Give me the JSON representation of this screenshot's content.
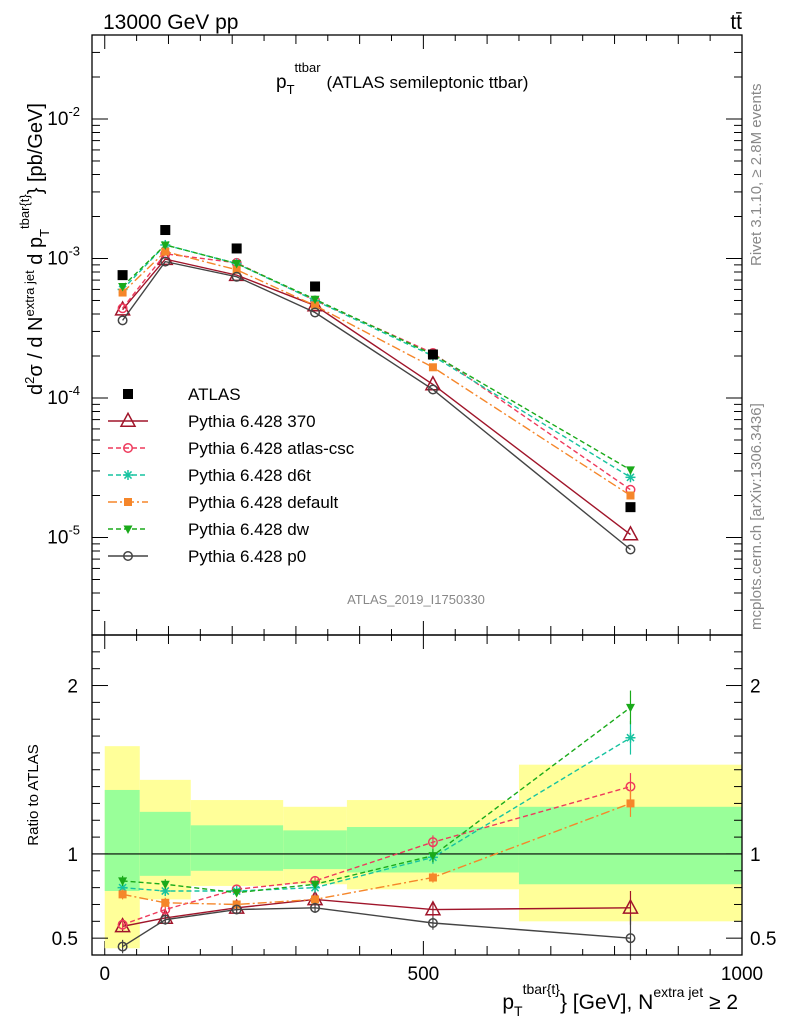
{
  "header": {
    "left": "13000 GeV pp",
    "right": "tt̄"
  },
  "side_labels": {
    "rivet": "Rivet 3.1.10, ≥ 2.8M events",
    "mcplots": "mcplots.cern.ch [arXiv:1306.3436]"
  },
  "chart_data": {
    "type": "line",
    "title_main": "p",
    "title_sub": "T",
    "title_sup": "ttbar",
    "title_rest": "(ATLAS semileptonic ttbar)",
    "watermark": "ATLAS_2019_I1750330",
    "ylabel_main": "d²σ / d N^{extra jet} d p_T^{tbar{t}} [pb/GeV]",
    "ylabel_ratio": "Ratio to ATLAS",
    "xlabel_parts": {
      "p": "p",
      "sub": "T",
      "sup": "tbar{t}",
      "mid": "} [GeV], N",
      "sup2": "extra jet",
      "end": " ≥ 2"
    },
    "xlim": [
      -20,
      1000
    ],
    "ylim_main": [
      2e-06,
      0.04
    ],
    "ylim_ratio": [
      0.4,
      2.3
    ],
    "y_scale_main": "log",
    "main_ytick_labels": [
      "10^{-5}",
      "10^{-4}",
      "10^{-3}",
      "10^{-2}"
    ],
    "ratio_ytick_labels": [
      "0.5",
      "1",
      "2"
    ],
    "x_tick_labels": [
      "0",
      "500",
      "1000"
    ],
    "bins": [
      {
        "lo": 0,
        "hi": 55
      },
      {
        "lo": 55,
        "hi": 135
      },
      {
        "lo": 135,
        "hi": 280
      },
      {
        "lo": 280,
        "hi": 380
      },
      {
        "lo": 380,
        "hi": 650
      },
      {
        "lo": 650,
        "hi": 1000
      }
    ],
    "x": [
      28,
      95,
      207,
      330,
      515,
      825
    ],
    "data": {
      "name": "ATLAS",
      "values": [
        0.00076,
        0.0016,
        0.00118,
        0.00063,
        0.000205,
        1.65e-05
      ],
      "band_green": [
        [
          0.78,
          1.38
        ],
        [
          0.87,
          1.25
        ],
        [
          0.9,
          1.17
        ],
        [
          0.91,
          1.14
        ],
        [
          0.89,
          1.16
        ],
        [
          0.82,
          1.28
        ]
      ],
      "band_yellow": [
        [
          0.44,
          1.64
        ],
        [
          0.73,
          1.44
        ],
        [
          0.81,
          1.32
        ],
        [
          0.82,
          1.28
        ],
        [
          0.79,
          1.32
        ],
        [
          0.6,
          1.53
        ]
      ]
    },
    "series": [
      {
        "name": "Pythia 6.428 370",
        "color": "#a0152a",
        "marker": "tri-up-open",
        "dash": "",
        "values": [
          0.00043,
          0.00099,
          0.00076,
          0.00046,
          0.000125,
          1.05e-05
        ],
        "ratio": [
          0.57,
          0.62,
          0.68,
          0.73,
          0.67,
          0.68
        ],
        "ratio_err": [
          0.03,
          0.03,
          0.02,
          0.03,
          0.04,
          0.1
        ]
      },
      {
        "name": "Pythia 6.428 atlas-csc",
        "color": "#ee3a5c",
        "marker": "circle-open",
        "dash": "5,3",
        "values": [
          0.00044,
          0.00108,
          0.00093,
          0.0005,
          0.00021,
          2.2e-05
        ],
        "ratio": [
          0.58,
          0.67,
          0.79,
          0.84,
          1.07,
          1.4
        ],
        "ratio_err": [
          0.03,
          0.03,
          0.02,
          0.02,
          0.04,
          0.08
        ]
      },
      {
        "name": "Pythia 6.428 d6t",
        "color": "#17c3a0",
        "marker": "asterisk",
        "dash": "5,3",
        "values": [
          0.0006,
          0.00125,
          0.00092,
          0.0005,
          0.0002,
          2.7e-05
        ],
        "ratio": [
          0.8,
          0.78,
          0.78,
          0.8,
          0.98,
          1.69
        ],
        "ratio_err": [
          0.03,
          0.03,
          0.02,
          0.02,
          0.04,
          0.1
        ]
      },
      {
        "name": "Pythia 6.428 default",
        "color": "#f5862a",
        "marker": "square",
        "dash": "9,3,2,3",
        "values": [
          0.00057,
          0.00112,
          0.00083,
          0.00046,
          0.000166,
          2e-05
        ],
        "ratio": [
          0.76,
          0.71,
          0.7,
          0.73,
          0.86,
          1.3
        ],
        "ratio_err": [
          0.03,
          0.03,
          0.02,
          0.02,
          0.03,
          0.08
        ]
      },
      {
        "name": "Pythia 6.428 dw",
        "color": "#1aaa1a",
        "marker": "tri-down",
        "dash": "5,3",
        "values": [
          0.00063,
          0.00125,
          0.00092,
          0.00051,
          0.000205,
          3.05e-05
        ],
        "ratio": [
          0.84,
          0.82,
          0.77,
          0.82,
          0.99,
          1.87
        ],
        "ratio_err": [
          0.03,
          0.03,
          0.02,
          0.02,
          0.04,
          0.1
        ]
      },
      {
        "name": "Pythia 6.428 p0",
        "color": "#444444",
        "marker": "circle-open",
        "dash": "",
        "values": [
          0.00036,
          0.00095,
          0.00074,
          0.00041,
          0.000115,
          8.2e-06
        ],
        "ratio": [
          0.45,
          0.61,
          0.67,
          0.68,
          0.59,
          0.5
        ],
        "ratio_err": [
          0.04,
          0.03,
          0.02,
          0.03,
          0.04,
          0.13
        ]
      }
    ]
  }
}
